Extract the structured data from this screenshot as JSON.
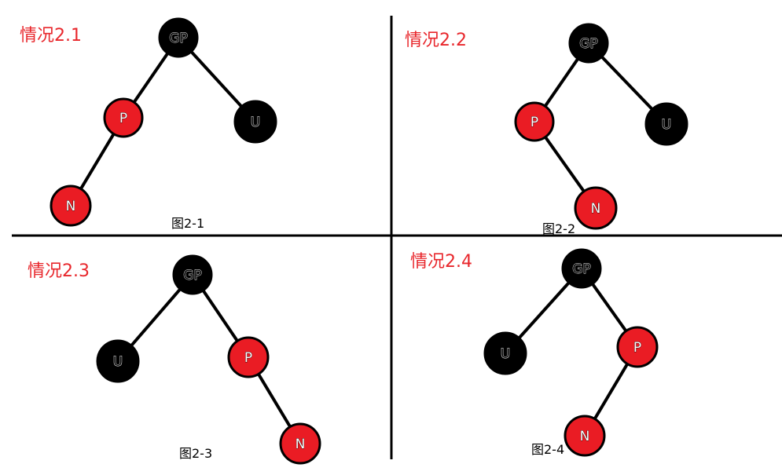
{
  "colors": {
    "red_node": "#ea1c24",
    "black_node": "#000000",
    "label": "#e8262b",
    "edge": "#000000"
  },
  "panels": [
    {
      "label": "情况2.1",
      "caption": "图2-1",
      "nodes": [
        {
          "id": "gp",
          "text": "GP",
          "color": "black"
        },
        {
          "id": "p",
          "text": "P",
          "color": "red"
        },
        {
          "id": "u",
          "text": "U",
          "color": "black"
        },
        {
          "id": "n",
          "text": "N",
          "color": "red"
        }
      ],
      "edges": [
        [
          "gp",
          "p"
        ],
        [
          "gp",
          "u"
        ],
        [
          "p",
          "n"
        ]
      ]
    },
    {
      "label": "情况2.2",
      "caption": "图2-2",
      "nodes": [
        {
          "id": "gp",
          "text": "GP",
          "color": "black"
        },
        {
          "id": "p",
          "text": "P",
          "color": "red"
        },
        {
          "id": "u",
          "text": "U",
          "color": "black"
        },
        {
          "id": "n",
          "text": "N",
          "color": "red"
        }
      ],
      "edges": [
        [
          "gp",
          "p"
        ],
        [
          "gp",
          "u"
        ],
        [
          "p",
          "n"
        ]
      ]
    },
    {
      "label": "情况2.3",
      "caption": "图2-3",
      "nodes": [
        {
          "id": "gp",
          "text": "GP",
          "color": "black"
        },
        {
          "id": "u",
          "text": "U",
          "color": "black"
        },
        {
          "id": "p",
          "text": "P",
          "color": "red"
        },
        {
          "id": "n",
          "text": "N",
          "color": "red"
        }
      ],
      "edges": [
        [
          "gp",
          "u"
        ],
        [
          "gp",
          "p"
        ],
        [
          "p",
          "n"
        ]
      ]
    },
    {
      "label": "情况2.4",
      "caption": "图2-4",
      "nodes": [
        {
          "id": "gp",
          "text": "GP",
          "color": "black"
        },
        {
          "id": "u",
          "text": "U",
          "color": "black"
        },
        {
          "id": "p",
          "text": "P",
          "color": "red"
        },
        {
          "id": "n",
          "text": "N",
          "color": "red"
        }
      ],
      "edges": [
        [
          "gp",
          "u"
        ],
        [
          "gp",
          "p"
        ],
        [
          "p",
          "n"
        ]
      ]
    }
  ]
}
